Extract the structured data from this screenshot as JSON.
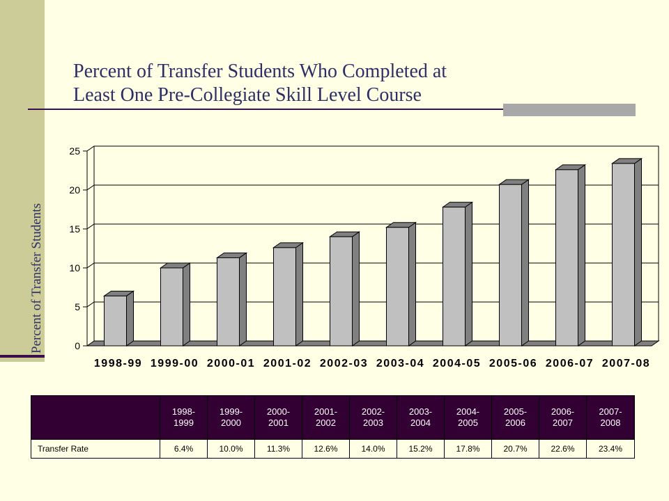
{
  "slide": {
    "title_line1": "Percent of Transfer Students Who Completed at",
    "title_line2": "Least One Pre-Collegiate Skill Level Course",
    "y_axis_title": "Percent of Transfer Students"
  },
  "chart_data": {
    "type": "bar",
    "categories": [
      "1998-99",
      "1999-00",
      "2000-01",
      "2001-02",
      "2002-03",
      "2003-04",
      "2004-05",
      "2005-06",
      "2006-07",
      "2007-08"
    ],
    "values": [
      6.4,
      10.0,
      11.3,
      12.6,
      14.0,
      15.2,
      17.8,
      20.7,
      22.6,
      23.4
    ],
    "ylabel": "Percent of Transfer Students",
    "ylim": [
      0,
      25
    ],
    "yticks": [
      0,
      5,
      10,
      15,
      20,
      25
    ],
    "grid": true,
    "bar_color": "#C0C0C0",
    "bar_side_color": "#808080"
  },
  "table": {
    "header": [
      "1998-\n1999",
      "1999-\n2000",
      "2000-\n2001",
      "2001-\n2002",
      "2002-\n2003",
      "2003-\n2004",
      "2004-\n2005",
      "2005-\n2006",
      "2006-\n2007",
      "2007-\n2008"
    ],
    "row_label": "Transfer Rate",
    "values": [
      "6.4%",
      "10.0%",
      "11.3%",
      "12.6%",
      "14.0%",
      "15.2%",
      "17.8%",
      "20.7%",
      "22.6%",
      "23.4%"
    ]
  }
}
